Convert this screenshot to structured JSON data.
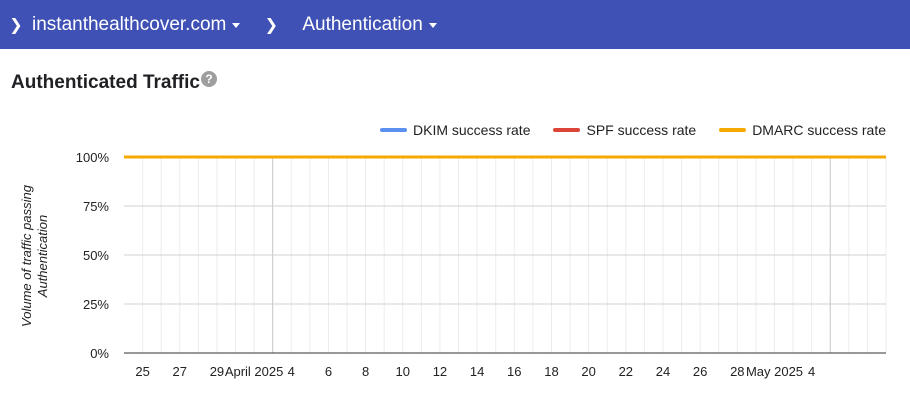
{
  "breadcrumb": {
    "items": [
      {
        "label": "instanthealthcover.com"
      },
      {
        "label": "Authentication"
      }
    ]
  },
  "section": {
    "title": "Authenticated Traffic",
    "help_icon": "?"
  },
  "colors": {
    "header_bg": "#3f51b5",
    "dkim": "#5b8ff0",
    "spf": "#db4437",
    "dmarc": "#f4a900"
  },
  "chart_data": {
    "type": "line",
    "ylabel": "Volume of traffic passing Authentication",
    "ylabel_lines": [
      "Volume of traffic passing",
      "Authentication"
    ],
    "ylim": [
      0,
      100
    ],
    "y_ticks": [
      100,
      75,
      50,
      25,
      0
    ],
    "y_tick_labels": [
      "100%",
      "75%",
      "50%",
      "25%",
      "0%"
    ],
    "x_tick_labels": [
      "25",
      "27",
      "29",
      "April 2025",
      "4",
      "6",
      "8",
      "10",
      "12",
      "14",
      "16",
      "18",
      "20",
      "22",
      "24",
      "26",
      "28",
      "May 2025",
      "4"
    ],
    "x_start": "2025-03-24",
    "x_end": "2025-05-04",
    "grid": true,
    "legend_position": "top-right",
    "series": [
      {
        "name": "DKIM success rate",
        "color": "#5b8ff0",
        "x": [
          "2025-03-24",
          "2025-05-04"
        ],
        "values": [
          100,
          100
        ]
      },
      {
        "name": "SPF success rate",
        "color": "#db4437",
        "x": [
          "2025-03-24",
          "2025-05-04"
        ],
        "values": [
          100,
          100
        ]
      },
      {
        "name": "DMARC success rate",
        "color": "#f4a900",
        "x": [
          "2025-03-24",
          "2025-05-04"
        ],
        "values": [
          100,
          100
        ]
      }
    ]
  }
}
